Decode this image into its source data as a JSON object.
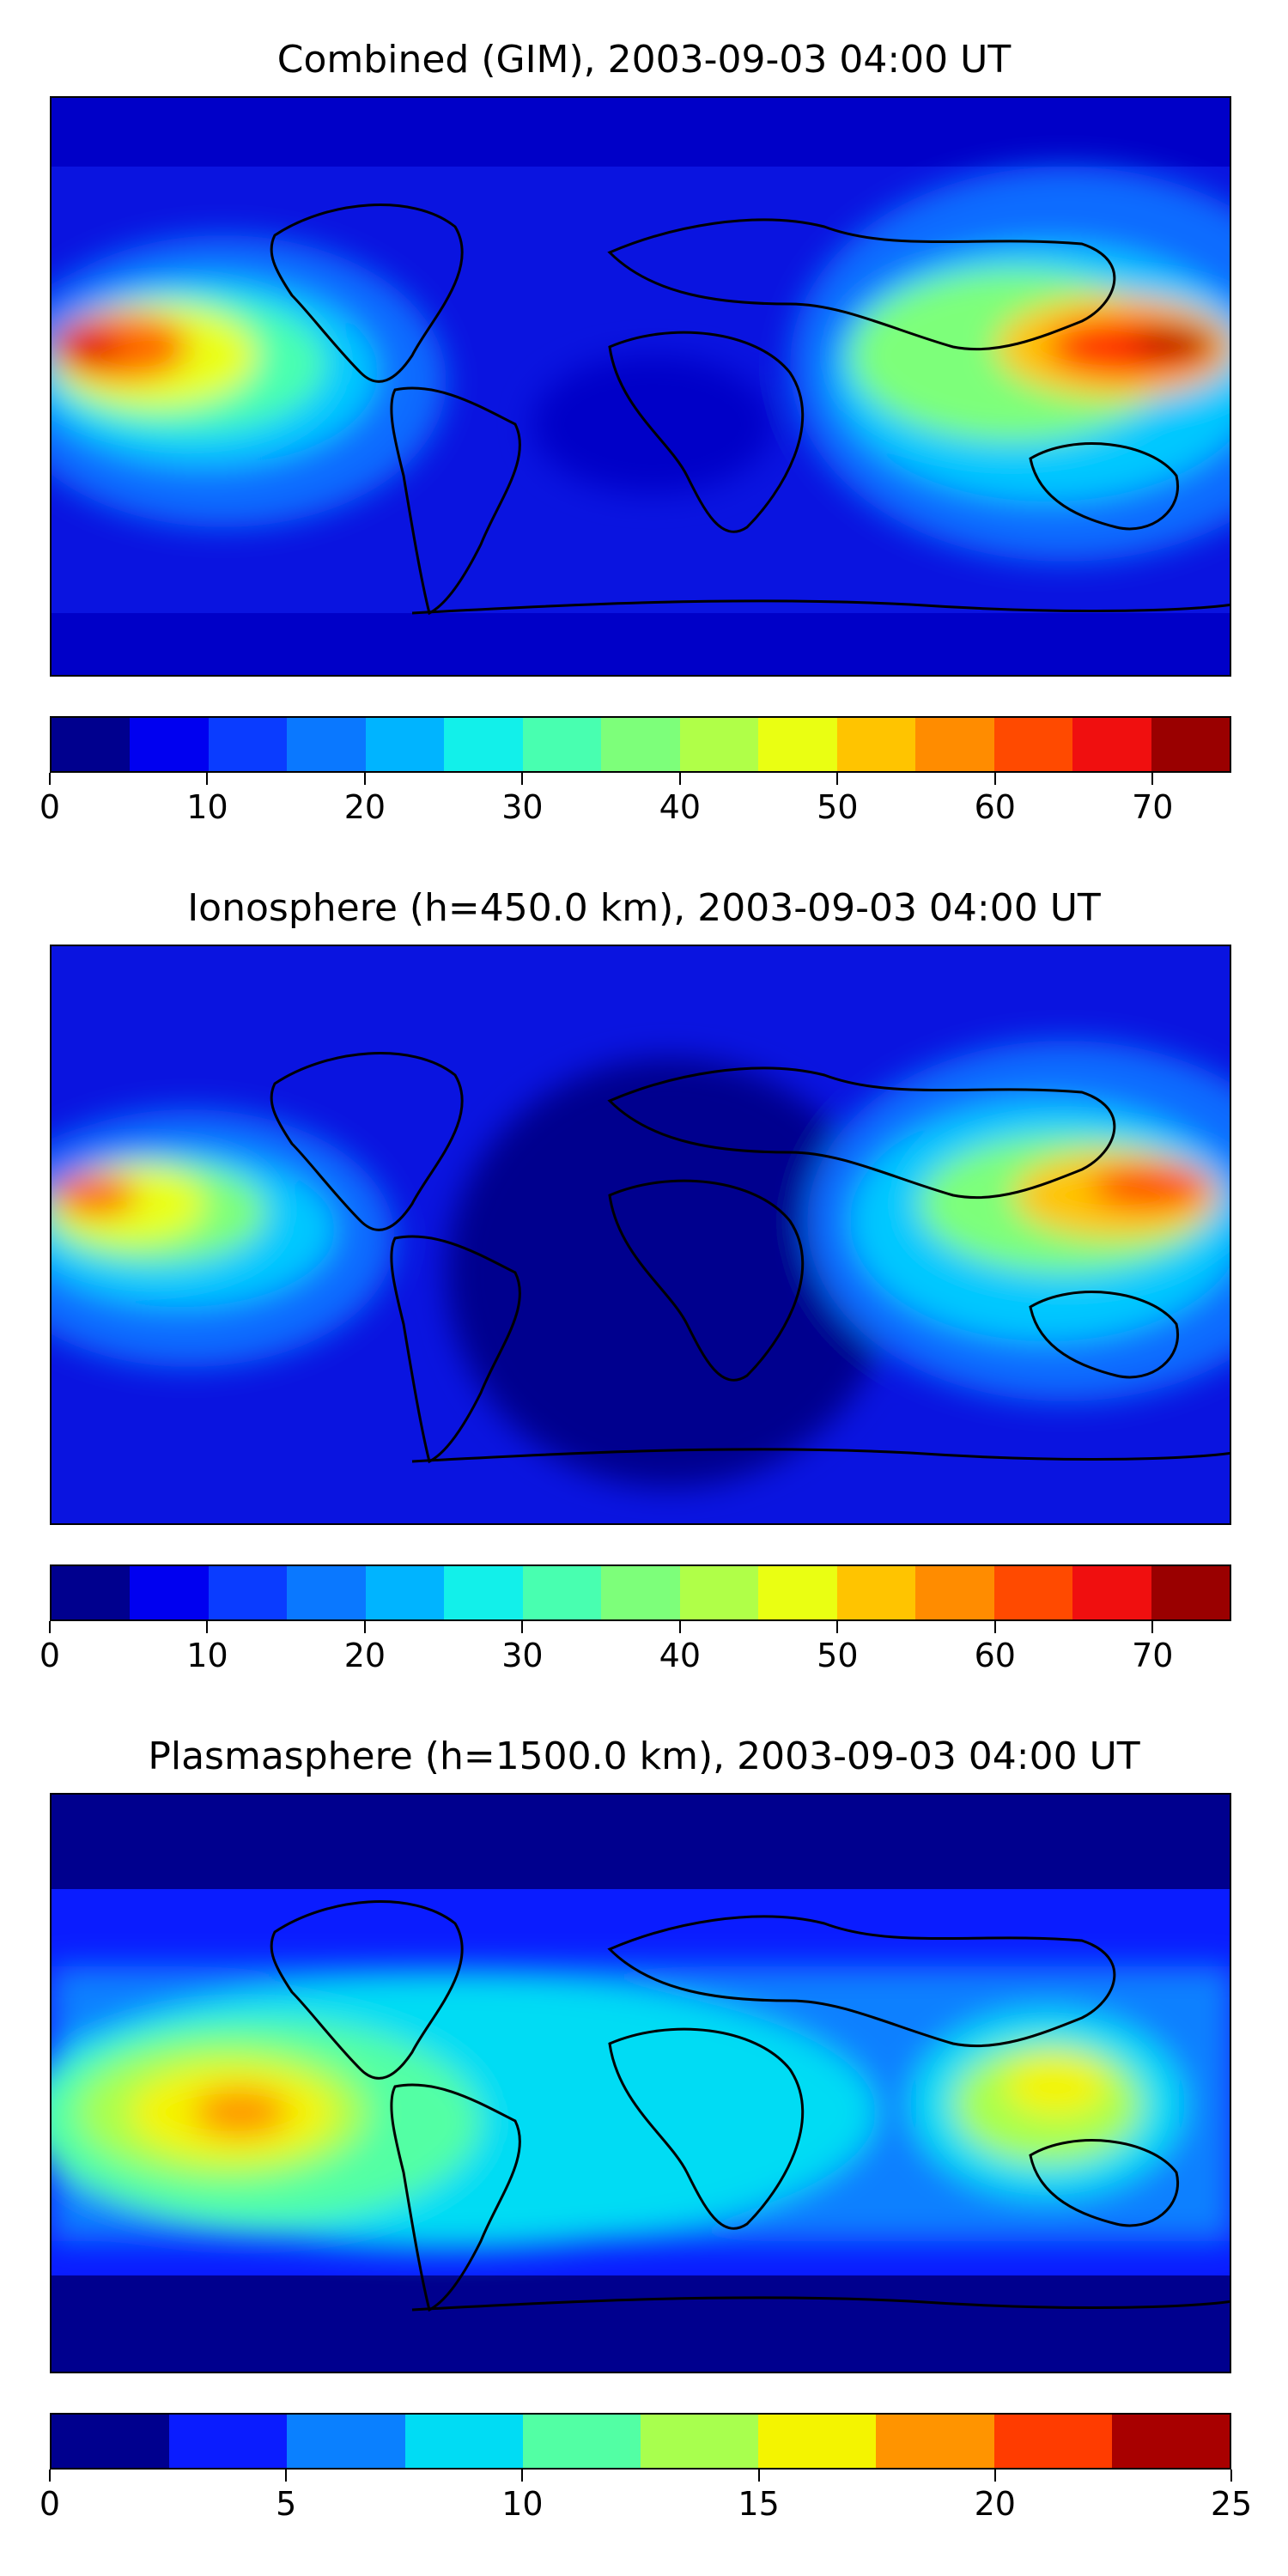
{
  "panels": [
    {
      "title": "Combined (GIM), 2003-09-03 04:00 UT",
      "colorbar": {
        "range": [
          0,
          75
        ],
        "colors": [
          "#00008e",
          "#0000f0",
          "#0a3cff",
          "#0a78ff",
          "#00b4ff",
          "#12f0ea",
          "#48ffb0",
          "#7dff7a",
          "#b0ff48",
          "#eaff12",
          "#ffc400",
          "#ff8c00",
          "#ff4a00",
          "#f00f0f",
          "#9a0000"
        ],
        "tick_values": [
          0,
          10,
          20,
          30,
          40,
          50,
          60,
          70
        ],
        "tick_labels": [
          "0",
          "10",
          "20",
          "30",
          "40",
          "50",
          "60",
          "70"
        ]
      }
    },
    {
      "title": "Ionosphere  (h=450.0 km), 2003-09-03 04:00 UT",
      "colorbar": {
        "range": [
          0,
          75
        ],
        "colors": [
          "#00008e",
          "#0000f0",
          "#0a3cff",
          "#0a78ff",
          "#00b4ff",
          "#12f0ea",
          "#48ffb0",
          "#7dff7a",
          "#b0ff48",
          "#eaff12",
          "#ffc400",
          "#ff8c00",
          "#ff4a00",
          "#f00f0f",
          "#9a0000"
        ],
        "tick_values": [
          0,
          10,
          20,
          30,
          40,
          50,
          60,
          70
        ],
        "tick_labels": [
          "0",
          "10",
          "20",
          "30",
          "40",
          "50",
          "60",
          "70"
        ]
      }
    },
    {
      "title": "Plasmasphere (h=1500.0 km), 2003-09-03 04:00 UT",
      "colorbar": {
        "range": [
          0,
          25
        ],
        "colors": [
          "#00008e",
          "#0a1cff",
          "#0a80ff",
          "#00dcf4",
          "#52ffa4",
          "#a8ff4e",
          "#f4f400",
          "#ff9400",
          "#ff3c00",
          "#a80000"
        ],
        "tick_values": [
          0,
          5,
          10,
          15,
          20,
          25
        ],
        "tick_labels": [
          "0",
          "5",
          "10",
          "15",
          "20",
          "25"
        ]
      }
    }
  ]
}
